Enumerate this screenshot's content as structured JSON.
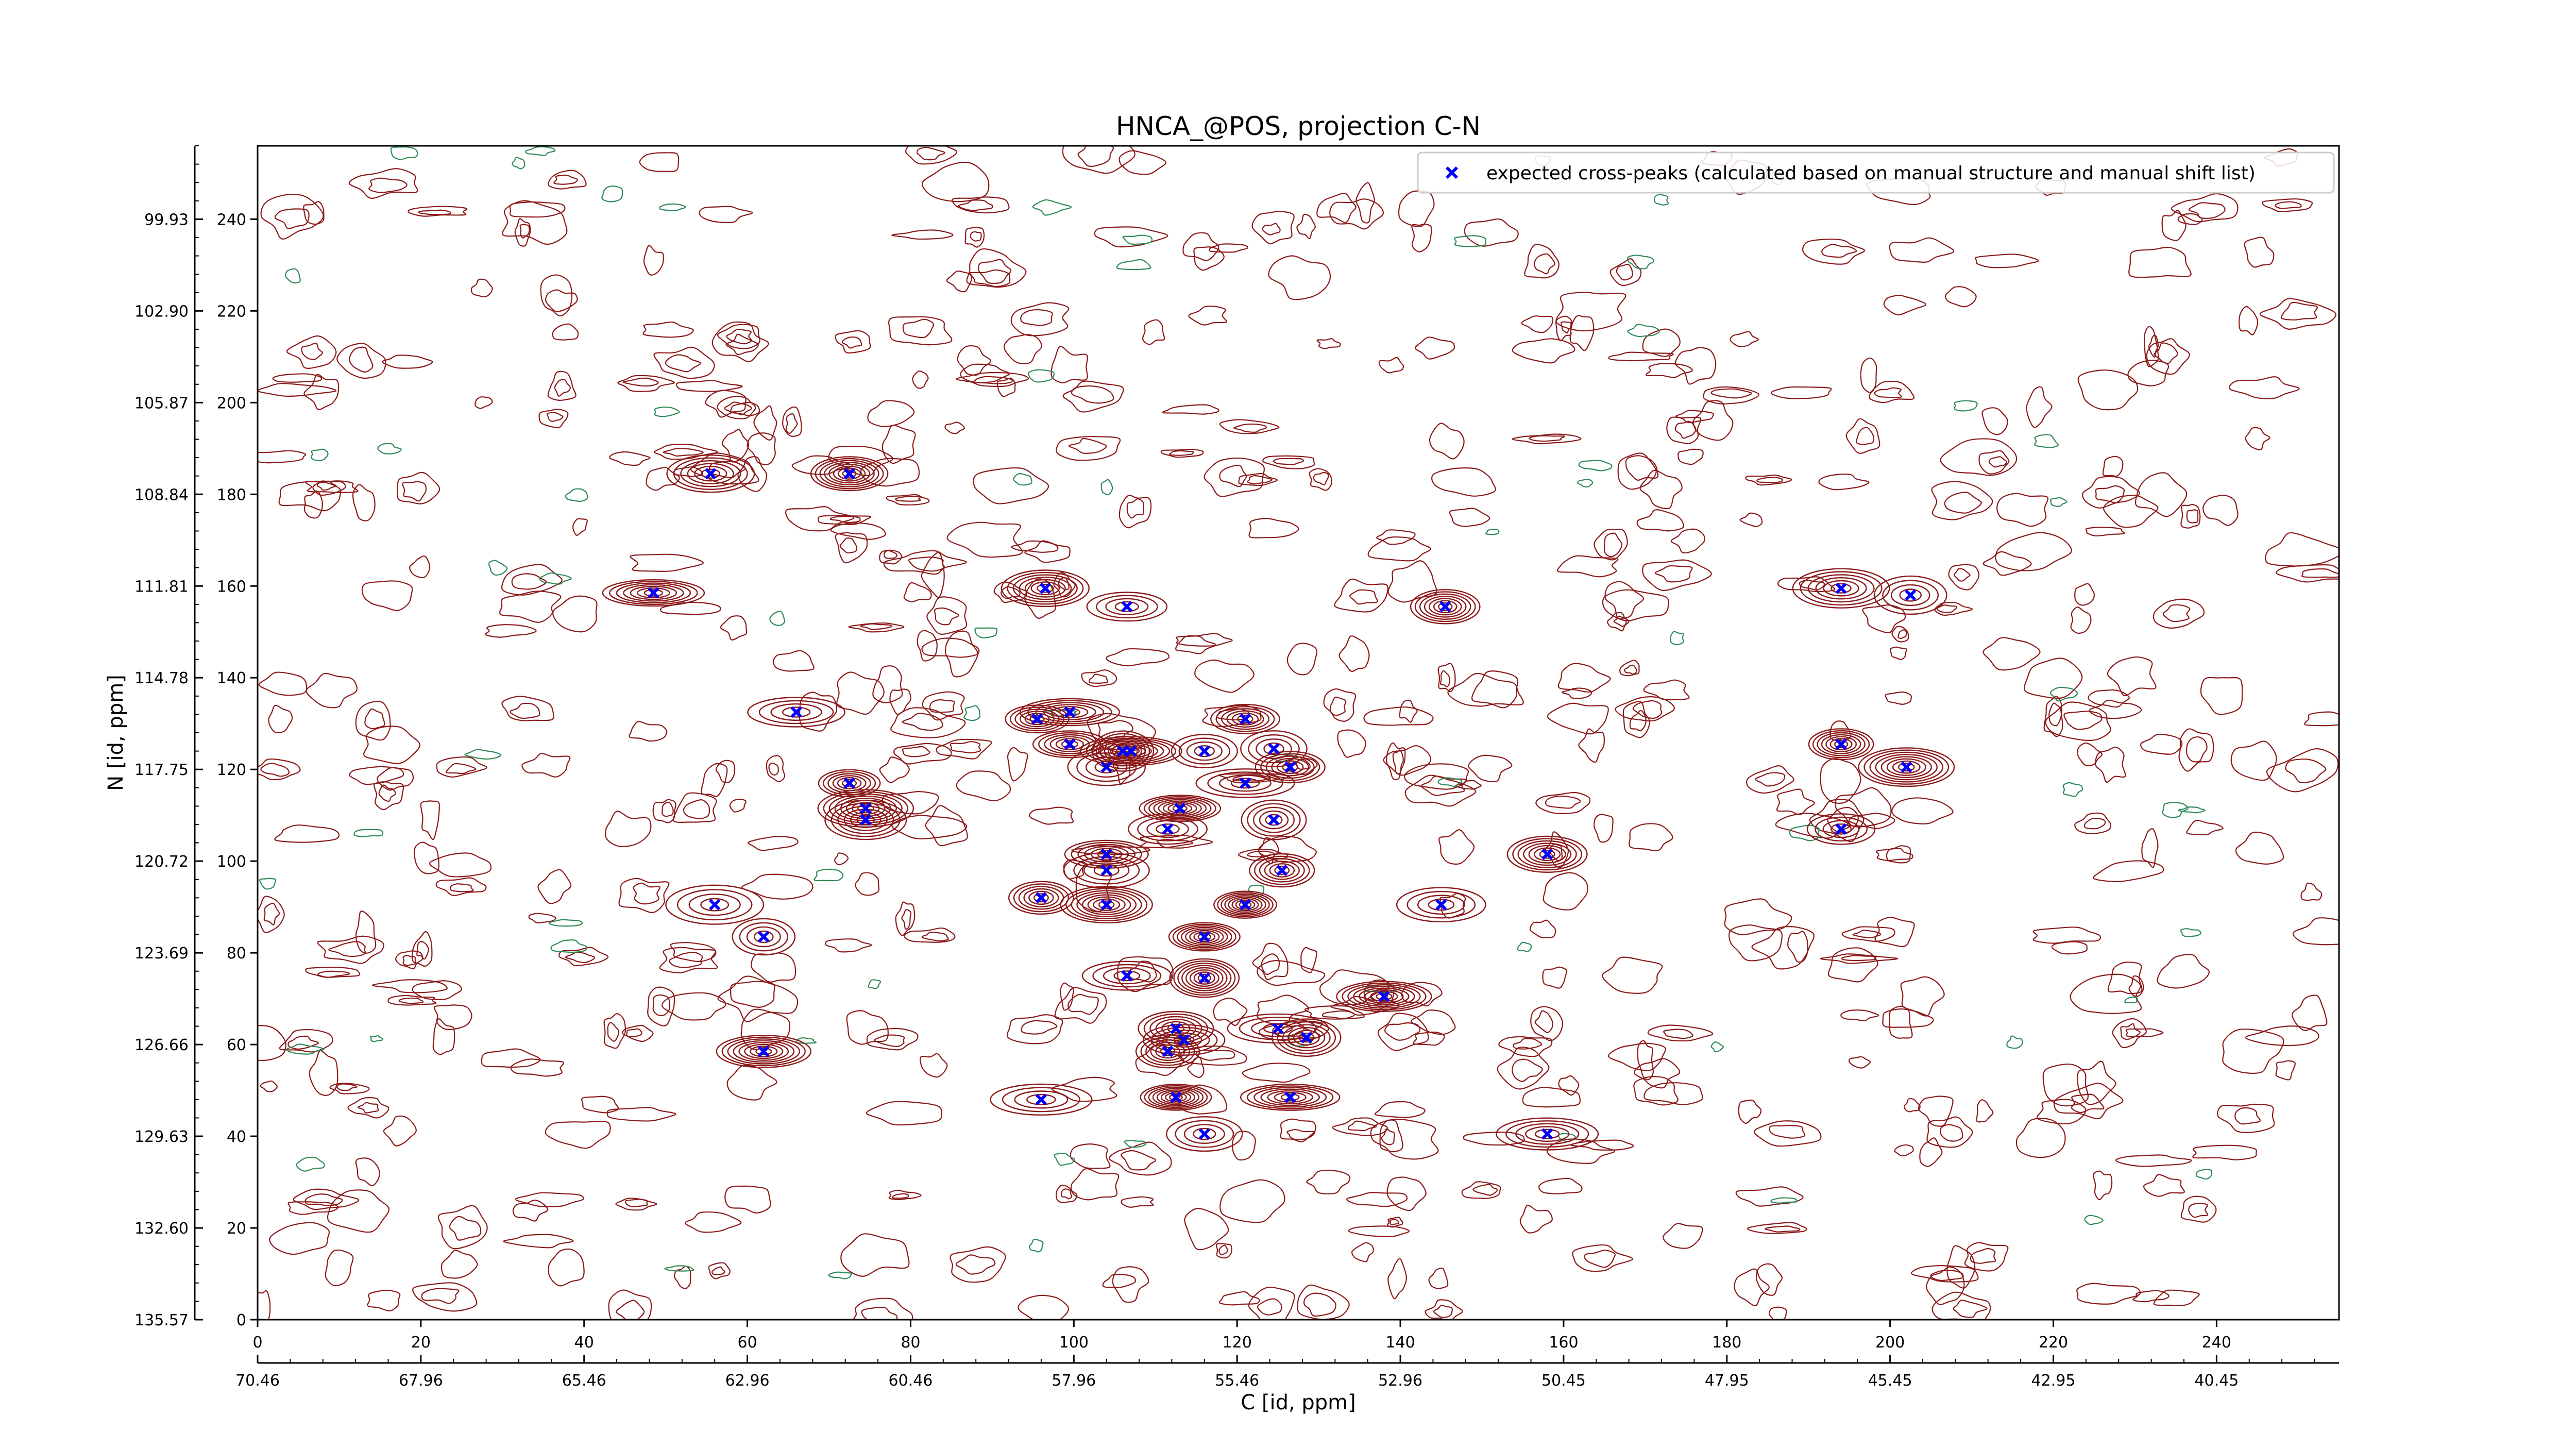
{
  "chart_data": {
    "type": "scatter",
    "title": "HNCA_@POS, projection C-N",
    "xlabel": "C [id, ppm]",
    "ylabel": "N [id, ppm]",
    "xlim": [
      0,
      255
    ],
    "ylim": [
      0,
      256
    ],
    "x_ticks": [
      0,
      20,
      40,
      60,
      80,
      100,
      120,
      140,
      160,
      180,
      200,
      220,
      240
    ],
    "y_ticks": [
      0,
      20,
      40,
      60,
      80,
      100,
      120,
      140,
      160,
      180,
      200,
      220,
      240
    ],
    "x_ppm_ticks": [
      {
        "pos": 0,
        "label": "70.46"
      },
      {
        "pos": 20,
        "label": "67.96"
      },
      {
        "pos": 40,
        "label": "65.46"
      },
      {
        "pos": 60,
        "label": "62.96"
      },
      {
        "pos": 80,
        "label": "60.46"
      },
      {
        "pos": 100,
        "label": "57.96"
      },
      {
        "pos": 120,
        "label": "55.46"
      },
      {
        "pos": 140,
        "label": "52.96"
      },
      {
        "pos": 160,
        "label": "50.45"
      },
      {
        "pos": 180,
        "label": "47.95"
      },
      {
        "pos": 200,
        "label": "45.45"
      },
      {
        "pos": 220,
        "label": "42.95"
      },
      {
        "pos": 240,
        "label": "40.45"
      }
    ],
    "y_ppm_ticks": [
      {
        "pos": 0,
        "label": "135.57"
      },
      {
        "pos": 20,
        "label": "132.60"
      },
      {
        "pos": 40,
        "label": "129.63"
      },
      {
        "pos": 60,
        "label": "126.66"
      },
      {
        "pos": 80,
        "label": "123.69"
      },
      {
        "pos": 100,
        "label": "120.72"
      },
      {
        "pos": 120,
        "label": "117.75"
      },
      {
        "pos": 140,
        "label": "114.78"
      },
      {
        "pos": 160,
        "label": "111.81"
      },
      {
        "pos": 180,
        "label": "108.84"
      },
      {
        "pos": 200,
        "label": "105.87"
      },
      {
        "pos": 220,
        "label": "102.90"
      },
      {
        "pos": 240,
        "label": "99.93"
      }
    ],
    "grid": false,
    "legend": {
      "position": "top-right"
    },
    "colors": {
      "positive_contour": "#8b1a1a",
      "negative_contour": "#2e8b57",
      "peak_marker": "#0000ff"
    },
    "series": [
      {
        "name": "expected cross-peaks (calculated based on manual structure and manual shift list)",
        "marker": "x",
        "points": [
          [
            55.5,
            184.5
          ],
          [
            72.5,
            184.5
          ],
          [
            48.5,
            158.5
          ],
          [
            96.5,
            159.5
          ],
          [
            106.5,
            155.5
          ],
          [
            145.5,
            155.5
          ],
          [
            194,
            159.5
          ],
          [
            202.5,
            158
          ],
          [
            66,
            132.5
          ],
          [
            95.5,
            131
          ],
          [
            99.5,
            132.5
          ],
          [
            99.5,
            125.5
          ],
          [
            106,
            124
          ],
          [
            107,
            124
          ],
          [
            116,
            124
          ],
          [
            121,
            131
          ],
          [
            124.5,
            124.5
          ],
          [
            104,
            120.5
          ],
          [
            121,
            117
          ],
          [
            126.5,
            120.5
          ],
          [
            194,
            125.5
          ],
          [
            202,
            120.5
          ],
          [
            72.5,
            117
          ],
          [
            74.5,
            111.5
          ],
          [
            74.5,
            109
          ],
          [
            113,
            111.5
          ],
          [
            111.5,
            107
          ],
          [
            124.5,
            109
          ],
          [
            194,
            107
          ],
          [
            104,
            101.5
          ],
          [
            104,
            98
          ],
          [
            125.5,
            98
          ],
          [
            158,
            101.5
          ],
          [
            56,
            90.5
          ],
          [
            96,
            92
          ],
          [
            104,
            90.5
          ],
          [
            121,
            90.5
          ],
          [
            145,
            90.5
          ],
          [
            62,
            83.5
          ],
          [
            116,
            83.5
          ],
          [
            106.5,
            75
          ],
          [
            116,
            74.5
          ],
          [
            138,
            70.5
          ],
          [
            62,
            58.5
          ],
          [
            112.5,
            63.5
          ],
          [
            113.5,
            61
          ],
          [
            111.5,
            58.5
          ],
          [
            125,
            63.5
          ],
          [
            128.5,
            61.5
          ],
          [
            96,
            48
          ],
          [
            112.5,
            48.5
          ],
          [
            126.5,
            48.5
          ],
          [
            116,
            40.5
          ],
          [
            158,
            40.5
          ]
        ]
      }
    ]
  }
}
